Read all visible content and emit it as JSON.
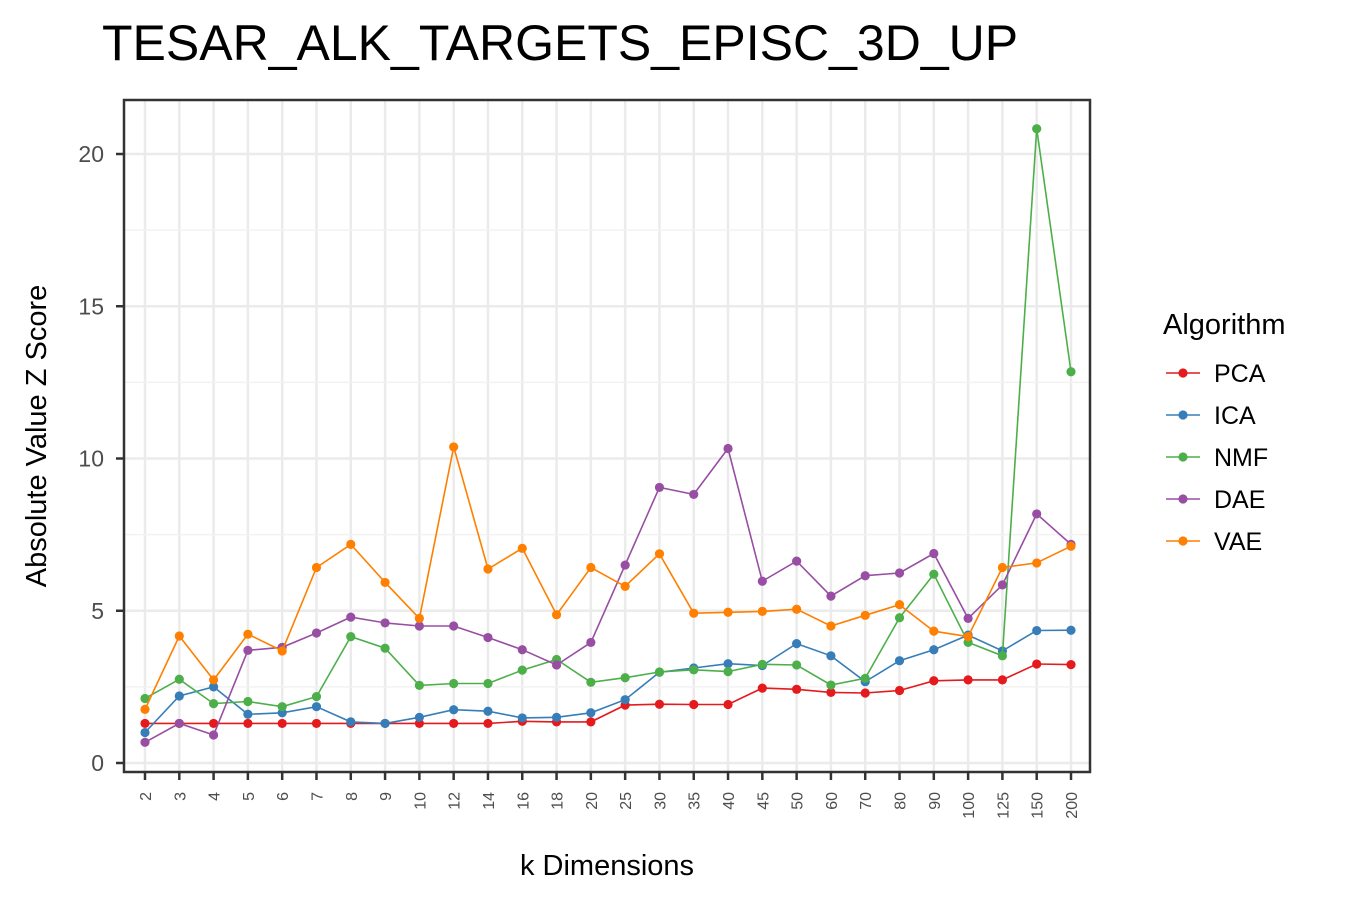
{
  "chart_data": {
    "type": "line",
    "title": "TESAR_ALK_TARGETS_EPISC_3D_UP",
    "xlabel": "k Dimensions",
    "ylabel": "Absolute Value Z Score",
    "categories": [
      "2",
      "3",
      "4",
      "5",
      "6",
      "7",
      "8",
      "9",
      "10",
      "12",
      "14",
      "16",
      "18",
      "20",
      "25",
      "30",
      "35",
      "40",
      "45",
      "50",
      "60",
      "70",
      "80",
      "90",
      "100",
      "125",
      "150",
      "200"
    ],
    "ylim": [
      0,
      22
    ],
    "yticks": [
      0,
      5,
      10,
      15,
      20
    ],
    "grid": true,
    "legend": {
      "title": "Algorithm",
      "position": "right"
    },
    "series": [
      {
        "name": "PCA",
        "color": "#e41a1c",
        "values": [
          1.3,
          1.3,
          1.3,
          1.3,
          1.3,
          1.3,
          1.3,
          1.3,
          1.3,
          1.3,
          1.3,
          1.37,
          1.35,
          1.35,
          1.9,
          1.93,
          1.92,
          1.92,
          2.46,
          2.42,
          2.32,
          2.3,
          2.38,
          2.7,
          2.73,
          2.73,
          3.25,
          3.23
        ]
      },
      {
        "name": "ICA",
        "color": "#377eb8",
        "values": [
          1.0,
          2.2,
          2.5,
          1.6,
          1.65,
          1.85,
          1.35,
          1.3,
          1.5,
          1.75,
          1.7,
          1.48,
          1.5,
          1.65,
          2.08,
          2.98,
          3.12,
          3.26,
          3.2,
          3.92,
          3.52,
          2.67,
          3.36,
          3.72,
          4.2,
          3.68,
          4.35,
          4.36
        ]
      },
      {
        "name": "NMF",
        "color": "#4daf4a",
        "values": [
          2.12,
          2.75,
          1.95,
          2.02,
          1.85,
          2.18,
          4.15,
          3.77,
          2.55,
          2.61,
          2.61,
          3.05,
          3.4,
          2.65,
          2.8,
          2.99,
          3.06,
          3.0,
          3.24,
          3.22,
          2.56,
          2.78,
          4.77,
          6.2,
          3.96,
          3.52,
          20.83,
          12.85
        ]
      },
      {
        "name": "DAE",
        "color": "#984ea3",
        "values": [
          0.68,
          1.3,
          0.92,
          3.7,
          3.8,
          4.27,
          4.79,
          4.6,
          4.5,
          4.5,
          4.12,
          3.72,
          3.22,
          3.96,
          6.5,
          9.05,
          8.82,
          10.33,
          5.97,
          6.63,
          5.48,
          6.15,
          6.24,
          6.88,
          4.75,
          5.85,
          8.18,
          7.18
        ]
      },
      {
        "name": "VAE",
        "color": "#ff7f00",
        "values": [
          1.76,
          4.17,
          2.73,
          4.23,
          3.68,
          6.42,
          7.18,
          5.93,
          4.75,
          10.38,
          6.37,
          7.05,
          4.87,
          6.42,
          5.8,
          6.87,
          4.92,
          4.95,
          4.98,
          5.05,
          4.5,
          4.85,
          5.2,
          4.33,
          4.15,
          6.42,
          6.57,
          7.12
        ]
      }
    ]
  }
}
